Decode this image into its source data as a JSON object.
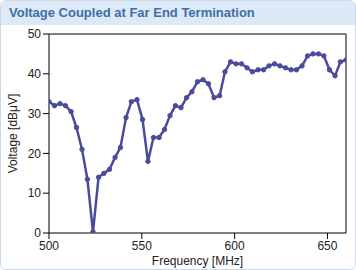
{
  "chart_data": {
    "type": "line",
    "title": "Voltage Coupled at Far End Termination",
    "x_label": "Frequency [MHz]",
    "y_label": "Voltage [dBμV]",
    "x": [
      500,
      503,
      505.9,
      508.9,
      511.9,
      514.8,
      517.8,
      520.7,
      523.7,
      526.7,
      529.6,
      532.6,
      535.6,
      538.5,
      541.5,
      544.4,
      547.4,
      550.4,
      553.3,
      556.3,
      559.3,
      562.2,
      565.2,
      568.1,
      571.1,
      574.1,
      577,
      580,
      583,
      585.9,
      588.9,
      591.9,
      594.8,
      597.8,
      600.7,
      603.7,
      606.7,
      609.6,
      612.6,
      615.6,
      618.5,
      621.5,
      624.4,
      627.4,
      630.4,
      633.3,
      636.3,
      639.3,
      642.2,
      645.2,
      648.1,
      651.1,
      654.1,
      657,
      660
    ],
    "values": [
      33,
      32,
      32.5,
      32,
      30.5,
      26.5,
      21,
      13.5,
      0.3,
      14,
      15,
      16,
      19,
      21.5,
      29,
      33,
      33.5,
      28.5,
      18,
      24,
      24,
      26,
      29.5,
      32,
      31.5,
      34,
      35.5,
      38,
      38.5,
      37.5,
      34,
      34.5,
      40.5,
      43,
      42.5,
      42.5,
      41.5,
      40.5,
      41,
      41,
      42,
      42.5,
      42,
      41.5,
      41,
      41,
      42,
      44.5,
      45,
      45,
      44.5,
      41,
      39.5,
      43,
      43.5
    ],
    "color": "#4b4b9b",
    "marker": "circle",
    "xlim": [
      500,
      660
    ],
    "ylim": [
      0,
      50
    ],
    "xticks": [
      500,
      550,
      600,
      650
    ],
    "yticks": [
      0,
      10,
      20,
      30,
      40,
      50
    ],
    "grid": false
  }
}
